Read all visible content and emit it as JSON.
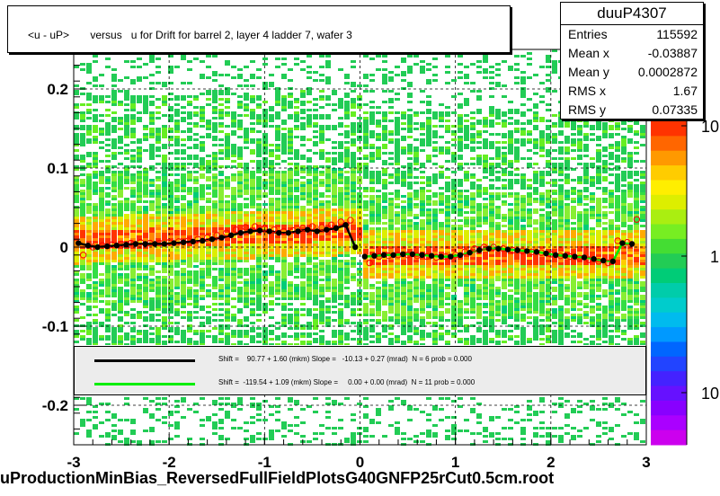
{
  "chart_data": {
    "type": "scatter",
    "title": "<u - uP>       versus   u for Drift for barrel 2, layer 4 ladder 7, wafer 3",
    "xlabel": "uProductionMinBias_ReversedFullFieldPlotsG40GNFP25rCut0.5cm.root",
    "ylabel": "",
    "xlim": [
      -3,
      3
    ],
    "ylim": [
      -0.25,
      0.25
    ],
    "x_ticks": [
      "-3",
      "-2",
      "-1",
      "0",
      "1",
      "2",
      "3"
    ],
    "y_ticks": [
      "-0.2",
      "-0.1",
      "0",
      "0.1",
      "0.2"
    ],
    "colorbar_ticks": [
      "10",
      "1",
      "10"
    ],
    "grid": true,
    "series": [
      {
        "name": "",
        "color": "#000000",
        "x": [
          -2.95,
          -2.85,
          -2.75,
          -2.65,
          -2.55,
          -2.45,
          -2.35,
          -2.25,
          -2.15,
          -2.05,
          -1.95,
          -1.85,
          -1.75,
          -1.65,
          -1.55,
          -1.45,
          -1.35,
          -1.25,
          -1.15,
          -1.05,
          -0.95,
          -0.85,
          -0.75,
          -0.65,
          -0.55,
          -0.45,
          -0.35,
          -0.25,
          -0.15,
          -0.05,
          0.05,
          0.15,
          0.25,
          0.35,
          0.45,
          0.55,
          0.65,
          0.75,
          0.85,
          0.95,
          1.05,
          1.15,
          1.25,
          1.35,
          1.45,
          1.55,
          1.65,
          1.75,
          1.85,
          1.95,
          2.05,
          2.15,
          2.25,
          2.35,
          2.45,
          2.55,
          2.65,
          2.75,
          2.85
        ],
        "y": [
          0.005,
          0.002,
          0.0,
          0.001,
          0.002,
          0.003,
          0.004,
          0.004,
          0.004,
          0.004,
          0.005,
          0.006,
          0.007,
          0.008,
          0.01,
          0.012,
          0.015,
          0.018,
          0.02,
          0.021,
          0.02,
          0.018,
          0.018,
          0.02,
          0.022,
          0.02,
          0.022,
          0.024,
          0.028,
          0.0,
          -0.012,
          -0.011,
          -0.01,
          -0.01,
          -0.009,
          -0.009,
          -0.01,
          -0.011,
          -0.012,
          -0.012,
          -0.01,
          -0.007,
          -0.004,
          -0.002,
          -0.002,
          -0.003,
          -0.004,
          -0.005,
          -0.006,
          -0.008,
          -0.01,
          -0.011,
          -0.012,
          -0.013,
          -0.015,
          -0.017,
          -0.018,
          0.005,
          0.004
        ]
      },
      {
        "name": "",
        "color": "#ff0000",
        "x": [
          -2.9,
          -2.8,
          -2.7,
          -2.6,
          -2.5,
          -2.4,
          -2.3,
          -2.2,
          -2.1,
          -2.0,
          -1.9,
          -1.8,
          -1.7,
          -1.6,
          -1.5,
          -1.4,
          -1.3,
          -1.2,
          -1.1,
          -1.0,
          -0.9,
          -0.8,
          -0.7,
          -0.6,
          -0.5,
          -0.4,
          -0.3,
          -0.2,
          -0.1,
          0.1,
          0.2,
          0.3,
          0.4,
          0.5,
          0.6,
          0.7,
          0.8,
          0.9,
          1.0,
          1.1,
          1.2,
          1.3,
          1.4,
          1.5,
          1.6,
          1.7,
          1.8,
          1.9,
          2.0,
          2.1,
          2.2,
          2.3,
          2.4,
          2.5,
          2.6,
          2.7,
          2.8,
          2.9
        ],
        "y": [
          -0.01,
          0.0,
          0.002,
          0.003,
          0.004,
          0.005,
          0.006,
          0.005,
          0.005,
          0.006,
          0.007,
          0.008,
          0.01,
          0.012,
          0.015,
          0.018,
          0.022,
          0.025,
          0.026,
          0.024,
          0.022,
          0.02,
          0.021,
          0.024,
          0.026,
          0.025,
          0.028,
          0.032,
          0.034,
          -0.02,
          -0.012,
          -0.011,
          -0.01,
          -0.01,
          -0.011,
          -0.012,
          -0.013,
          -0.012,
          -0.01,
          -0.006,
          -0.002,
          0.0,
          0.0,
          -0.002,
          -0.004,
          -0.005,
          -0.006,
          -0.007,
          -0.009,
          -0.011,
          -0.012,
          -0.014,
          -0.016,
          -0.018,
          -0.02,
          0.008,
          0.006,
          0.035
        ]
      }
    ],
    "fits": [
      {
        "name": "",
        "color": "#000000",
        "label": "Shift =    90.77 + 1.60 (mkm) Slope =   -10.13 + 0.27 (mrad)  N = 6 prob = 0.000"
      },
      {
        "name": "",
        "color": "#00ee00",
        "label": "Shift =  -119.54 + 1.09 (mkm) Slope =     0.00 + 0.00 (mrad)  N = 11 prob = 0.000"
      }
    ]
  },
  "stats": {
    "name": "duuP4307",
    "rows": [
      {
        "label": "Entries",
        "value": "115592"
      },
      {
        "label": "Mean x",
        "value": "-0.03887"
      },
      {
        "label": "Mean y",
        "value": "0.0002872"
      },
      {
        "label": "RMS x",
        "value": "1.67"
      },
      {
        "label": "RMS y",
        "value": "0.07335"
      }
    ]
  }
}
